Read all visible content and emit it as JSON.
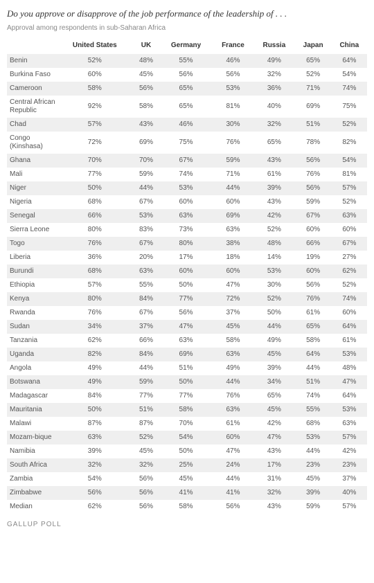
{
  "title": "Do you approve or disapprove of the job performance of the leadership of . . .",
  "subtitle": "Approval among respondents in sub-Saharan Africa",
  "footer": "Gallup Poll",
  "table": {
    "type": "table",
    "columns": [
      "",
      "United States",
      "UK",
      "Germany",
      "France",
      "Russia",
      "Japan",
      "China"
    ],
    "rows": [
      [
        "Benin",
        "52%",
        "48%",
        "55%",
        "46%",
        "49%",
        "65%",
        "64%"
      ],
      [
        "Burkina Faso",
        "60%",
        "45%",
        "56%",
        "56%",
        "32%",
        "52%",
        "54%"
      ],
      [
        "Cameroon",
        "58%",
        "56%",
        "65%",
        "53%",
        "36%",
        "71%",
        "74%"
      ],
      [
        "Central African Republic",
        "92%",
        "58%",
        "65%",
        "81%",
        "40%",
        "69%",
        "75%"
      ],
      [
        "Chad",
        "57%",
        "43%",
        "46%",
        "30%",
        "32%",
        "51%",
        "52%"
      ],
      [
        "Congo (Kinshasa)",
        "72%",
        "69%",
        "75%",
        "76%",
        "65%",
        "78%",
        "82%"
      ],
      [
        "Ghana",
        "70%",
        "70%",
        "67%",
        "59%",
        "43%",
        "56%",
        "54%"
      ],
      [
        "Mali",
        "77%",
        "59%",
        "74%",
        "71%",
        "61%",
        "76%",
        "81%"
      ],
      [
        "Niger",
        "50%",
        "44%",
        "53%",
        "44%",
        "39%",
        "56%",
        "57%"
      ],
      [
        "Nigeria",
        "68%",
        "67%",
        "60%",
        "60%",
        "43%",
        "59%",
        "52%"
      ],
      [
        "Senegal",
        "66%",
        "53%",
        "63%",
        "69%",
        "42%",
        "67%",
        "63%"
      ],
      [
        "Sierra Leone",
        "80%",
        "83%",
        "73%",
        "63%",
        "52%",
        "60%",
        "60%"
      ],
      [
        "Togo",
        "76%",
        "67%",
        "80%",
        "38%",
        "48%",
        "66%",
        "67%"
      ],
      [
        "Liberia",
        "36%",
        "20%",
        "17%",
        "18%",
        "14%",
        "19%",
        "27%"
      ],
      [
        "Burundi",
        "68%",
        "63%",
        "60%",
        "60%",
        "53%",
        "60%",
        "62%"
      ],
      [
        "Ethiopia",
        "57%",
        "55%",
        "50%",
        "47%",
        "30%",
        "56%",
        "52%"
      ],
      [
        "Kenya",
        "80%",
        "84%",
        "77%",
        "72%",
        "52%",
        "76%",
        "74%"
      ],
      [
        "Rwanda",
        "76%",
        "67%",
        "56%",
        "37%",
        "50%",
        "61%",
        "60%"
      ],
      [
        "Sudan",
        "34%",
        "37%",
        "47%",
        "45%",
        "44%",
        "65%",
        "64%"
      ],
      [
        "Tanzania",
        "62%",
        "66%",
        "63%",
        "58%",
        "49%",
        "58%",
        "61%"
      ],
      [
        "Uganda",
        "82%",
        "84%",
        "69%",
        "63%",
        "45%",
        "64%",
        "53%"
      ],
      [
        "Angola",
        "49%",
        "44%",
        "51%",
        "49%",
        "39%",
        "44%",
        "48%"
      ],
      [
        "Botswana",
        "49%",
        "59%",
        "50%",
        "44%",
        "34%",
        "51%",
        "47%"
      ],
      [
        "Madagascar",
        "84%",
        "77%",
        "77%",
        "76%",
        "65%",
        "74%",
        "64%"
      ],
      [
        "Mauritania",
        "50%",
        "51%",
        "58%",
        "63%",
        "45%",
        "55%",
        "53%"
      ],
      [
        "Malawi",
        "87%",
        "87%",
        "70%",
        "61%",
        "42%",
        "68%",
        "63%"
      ],
      [
        "Mozam-bique",
        "63%",
        "52%",
        "54%",
        "60%",
        "47%",
        "53%",
        "57%"
      ],
      [
        "Namibia",
        "39%",
        "45%",
        "50%",
        "47%",
        "43%",
        "44%",
        "42%"
      ],
      [
        "South Africa",
        "32%",
        "32%",
        "25%",
        "24%",
        "17%",
        "23%",
        "23%"
      ],
      [
        "Zambia",
        "54%",
        "56%",
        "45%",
        "44%",
        "31%",
        "45%",
        "37%"
      ],
      [
        "Zimbabwe",
        "56%",
        "56%",
        "41%",
        "41%",
        "32%",
        "39%",
        "40%"
      ],
      [
        "Median",
        "62%",
        "56%",
        "58%",
        "56%",
        "43%",
        "59%",
        "57%"
      ]
    ],
    "header_fontsize": 10,
    "cell_fontsize": 10,
    "row_alt_bg": "#efefef",
    "row_bg": "#ffffff",
    "text_color": "#555555",
    "header_color": "#333333"
  }
}
